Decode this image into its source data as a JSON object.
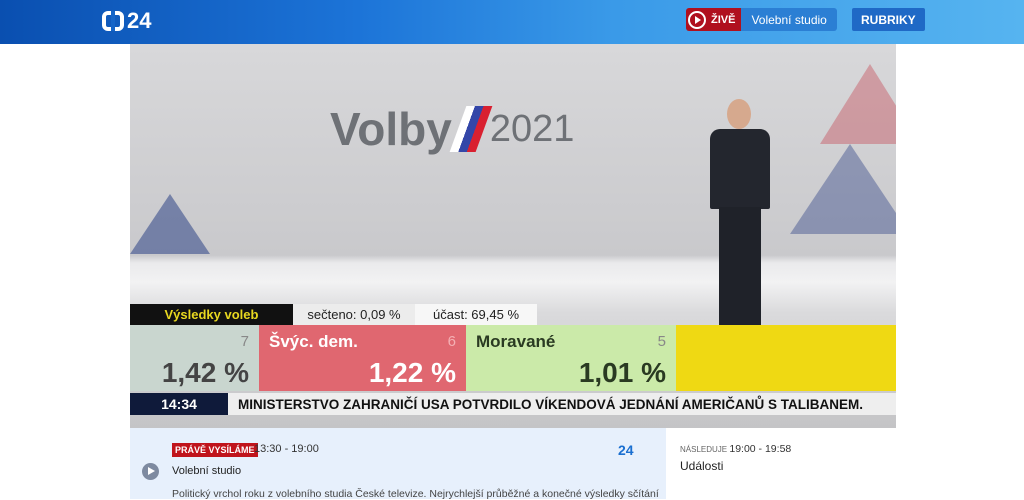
{
  "header": {
    "logo": "24",
    "live_label": "ŽIVĚ",
    "live_channel": "Volební studio",
    "menu_label": "RUBRIKY"
  },
  "video": {
    "studio_logo": {
      "word": "Volby",
      "year": "2021"
    },
    "results_bar": {
      "title": "Výsledky voleb",
      "counted": "sečteno: 0,09 %",
      "turnout": "účast: 69,45 %"
    },
    "cards": [
      {
        "name": "",
        "rank": "7",
        "percent": "1,42 %",
        "color": "#c9d6cf"
      },
      {
        "name": "Švýc. dem.",
        "rank": "6",
        "percent": "1,22 %",
        "color": "#e06770"
      },
      {
        "name": "Moravané",
        "rank": "5",
        "percent": "1,01 %",
        "color": "#cbeaa9"
      },
      {
        "name": "",
        "rank": "",
        "percent": "",
        "color": "#efd913"
      }
    ],
    "ticker": {
      "time": "14:34",
      "text": "MINISTERSTVO ZAHRANIČÍ USA POTVRDILO VÍKENDOVÁ JEDNÁNÍ AMERIČANŮ S TALIBANEM."
    }
  },
  "now": {
    "badge": "PRÁVĚ VYSÍLÁME",
    "time": "13:30 - 19:00",
    "title": "Volební studio",
    "channel_logo": "24",
    "description": "Politický vrchol roku z volebního studia České televize. Nejrychlejší průběžné a konečné výsledky sčítání"
  },
  "next": {
    "label": "NÁSLEDUJE",
    "time": "19:00 - 19:58",
    "title": "Události"
  }
}
